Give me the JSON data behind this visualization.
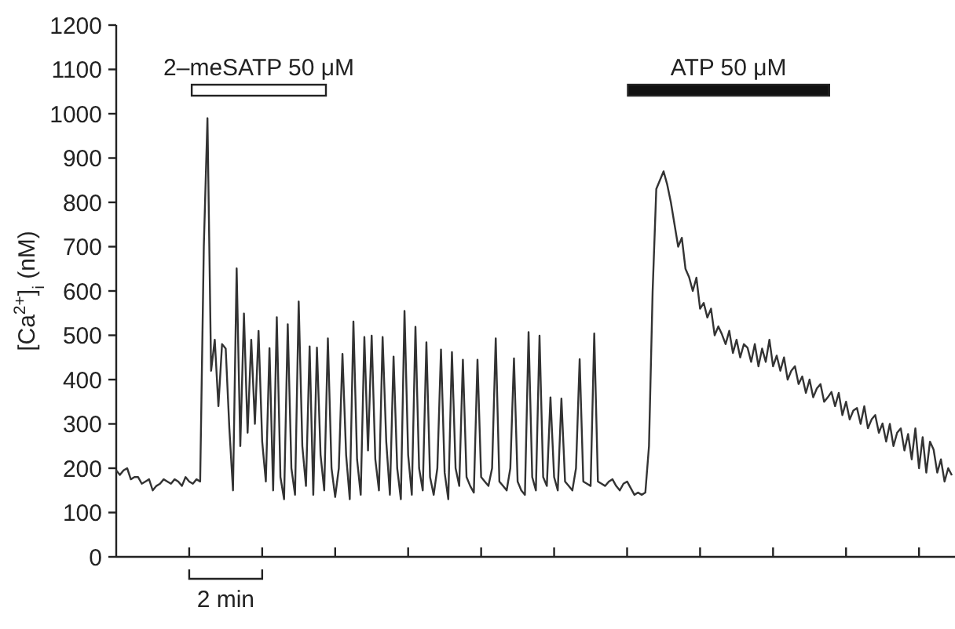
{
  "chart_data": {
    "type": "line",
    "ylabel": "[Ca$^{2+}$]$_{i}$ (nM)",
    "categories": [
      null,
      null,
      null,
      null,
      null,
      null,
      null,
      null,
      null,
      null,
      null,
      null,
      null,
      null,
      null,
      null,
      null,
      null,
      null,
      null,
      null,
      null,
      null,
      null,
      null,
      null,
      null,
      null,
      null,
      null,
      null,
      null,
      null,
      null,
      null,
      null,
      null,
      null,
      null,
      null,
      null,
      null,
      null,
      null,
      null,
      null,
      null,
      null,
      null,
      null,
      null,
      null,
      null,
      null,
      null,
      null,
      null,
      null,
      null,
      null,
      null,
      null,
      null,
      null,
      null,
      null,
      null,
      null,
      null,
      null,
      null,
      null,
      null,
      null,
      null,
      null,
      null,
      null,
      null,
      null,
      null,
      null,
      null,
      null,
      null,
      null,
      null,
      null,
      null,
      null,
      null,
      null,
      null,
      null,
      null,
      null,
      null,
      null,
      null,
      null,
      null,
      null,
      null,
      null,
      null,
      null,
      null,
      null,
      null,
      null,
      null,
      null,
      null,
      null,
      null,
      null,
      null,
      null,
      null,
      null,
      null,
      null,
      null,
      null,
      null,
      null,
      null,
      null,
      null,
      null,
      null,
      null,
      null,
      null,
      null,
      null,
      null,
      null,
      null,
      null,
      null,
      null,
      null,
      null,
      null,
      null,
      null,
      null,
      null,
      null,
      null,
      null,
      null,
      null,
      null,
      null,
      null,
      null,
      null,
      null,
      null,
      null,
      null,
      null,
      null,
      null,
      null,
      null,
      null,
      null,
      null,
      null,
      null,
      null,
      null,
      null,
      null,
      null,
      null,
      null,
      null,
      null,
      null,
      null,
      null,
      null,
      null,
      null,
      null,
      null,
      null,
      null,
      null,
      null,
      null,
      null,
      null,
      null,
      null,
      null,
      null,
      null,
      null,
      null,
      null,
      null,
      null,
      null,
      null,
      null,
      null,
      null,
      null,
      null,
      null,
      null,
      null,
      null,
      null,
      null,
      null,
      null,
      null,
      null,
      null,
      null,
      null,
      null,
      null,
      null
    ],
    "ylim": [
      0,
      1200
    ],
    "yticks": [
      0,
      100,
      200,
      300,
      400,
      500,
      600,
      700,
      800,
      900,
      1000,
      1100,
      1200
    ],
    "tick_labels": "y",
    "grid": false,
    "marker": "none",
    "line_style": "solid",
    "annotations": [
      "2–meSATP 50 μM",
      "ATP 50 μM",
      "2 min"
    ],
    "series": [
      {
        "color": "#333333",
        "values": [
          195,
          185,
          195,
          200,
          175,
          180,
          180,
          165,
          170,
          175,
          150,
          160,
          165,
          175,
          170,
          165,
          175,
          170,
          160,
          180,
          170,
          165,
          175,
          170,
          700,
          990,
          420,
          490,
          340,
          480,
          470,
          290,
          150,
          651,
          250,
          549,
          280,
          490,
          300,
          510,
          260,
          170,
          471,
          150,
          541,
          180,
          130,
          525,
          200,
          140,
          576,
          250,
          160,
          475,
          140,
          472,
          230,
          150,
          493,
          200,
          135,
          200,
          458,
          230,
          130,
          531,
          220,
          140,
          496,
          240,
          499,
          220,
          150,
          496,
          260,
          140,
          452,
          200,
          130,
          555,
          230,
          140,
          519,
          200,
          150,
          484,
          180,
          140,
          200,
          468,
          190,
          130,
          462,
          200,
          160,
          445,
          180,
          160,
          145,
          445,
          180,
          170,
          160,
          200,
          493,
          170,
          160,
          150,
          200,
          448,
          170,
          150,
          140,
          507,
          180,
          150,
          499,
          180,
          160,
          360,
          180,
          150,
          357,
          170,
          160,
          150,
          200,
          446,
          170,
          165,
          160,
          504,
          170,
          165,
          160,
          170,
          175,
          160,
          150,
          165,
          170,
          155,
          140,
          145,
          140,
          145,
          250,
          600,
          830,
          850,
          870,
          840,
          800,
          750,
          700,
          720,
          650,
          631,
          600,
          630,
          560,
          573,
          540,
          560,
          500,
          520,
          502,
          480,
          510,
          460,
          490,
          450,
          480,
          472,
          440,
          480,
          430,
          470,
          440,
          490,
          430,
          454,
          420,
          450,
          400,
          420,
          430,
          390,
          407,
          370,
          400,
          360,
          380,
          390,
          350,
          360,
          372,
          340,
          370,
          320,
          350,
          310,
          330,
          336,
          300,
          340,
          290,
          310,
          320,
          280,
          301,
          260,
          300,
          250,
          280,
          290,
          240,
          277,
          220,
          290,
          200,
          270,
          190,
          260,
          242,
          190,
          220,
          170,
          200,
          184
        ]
      }
    ]
  }
}
